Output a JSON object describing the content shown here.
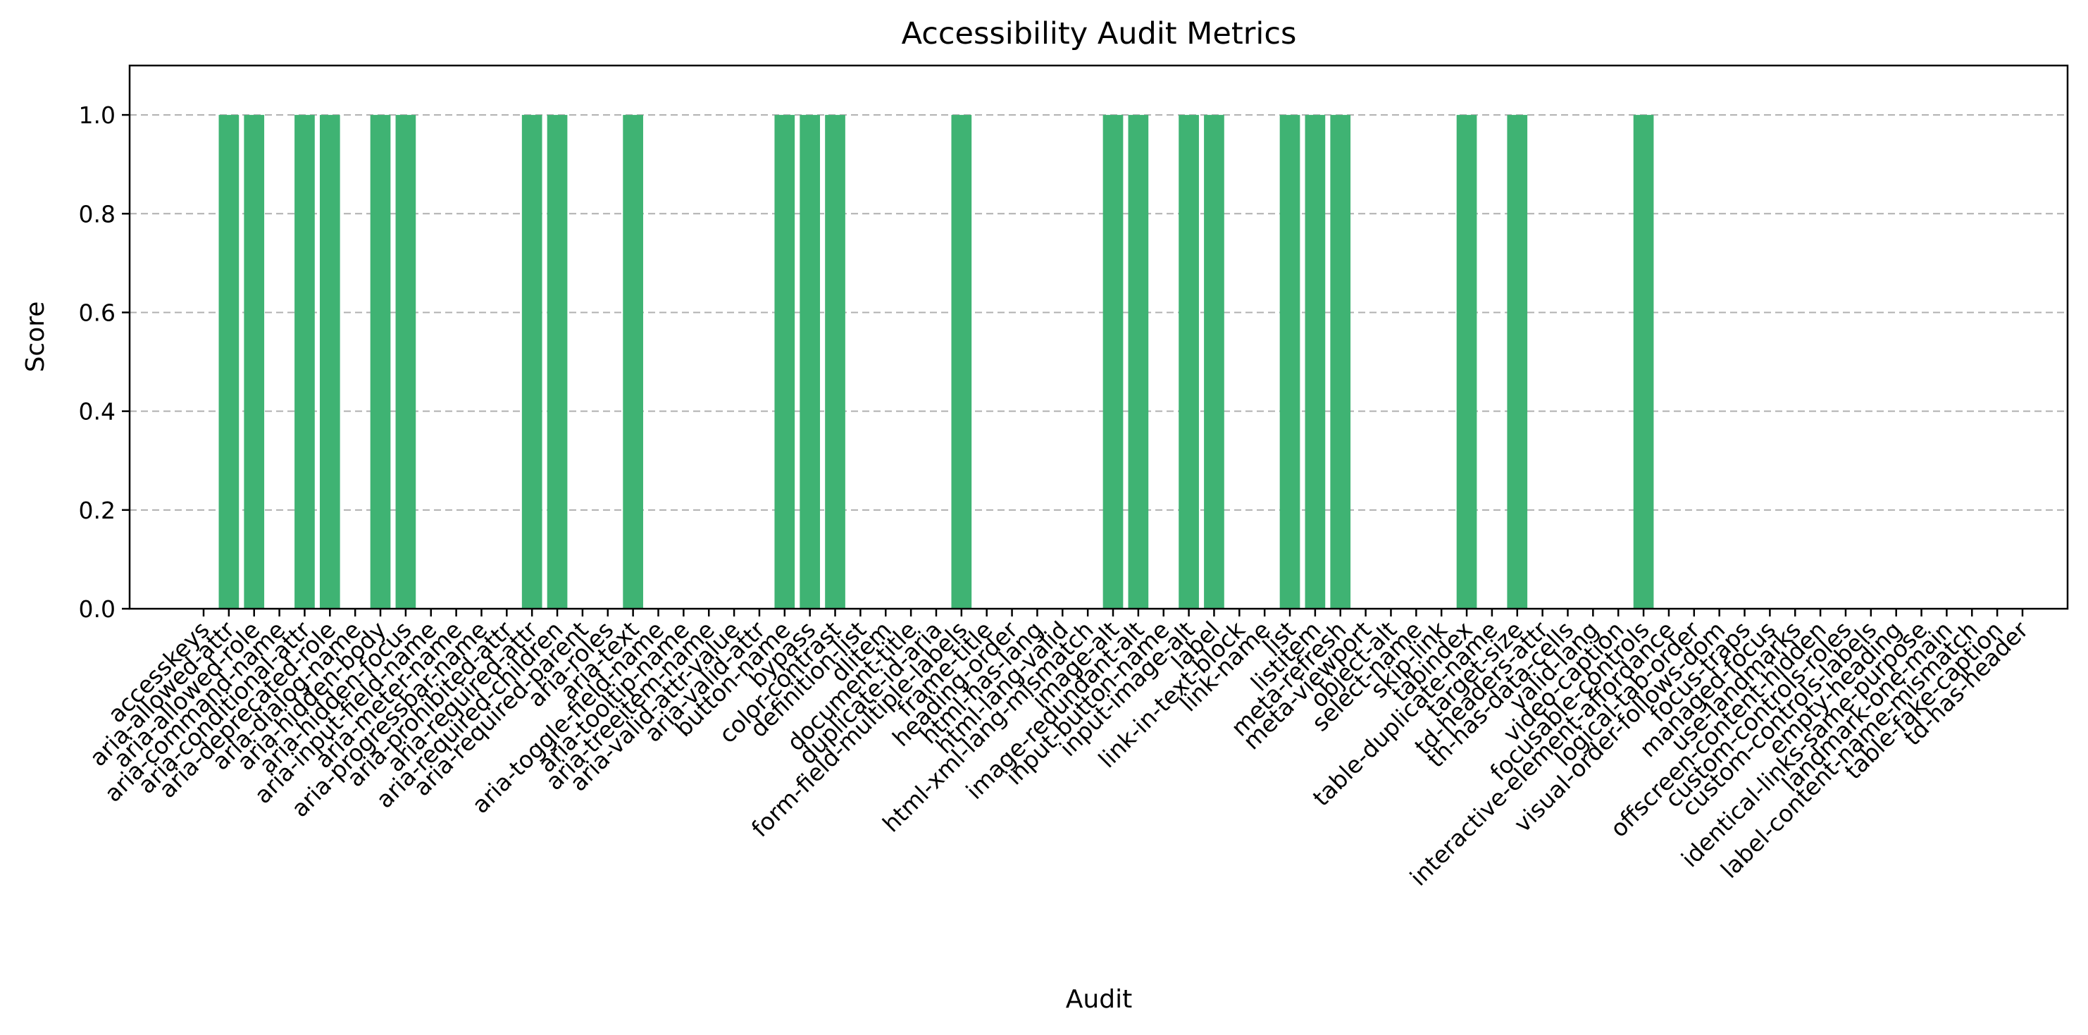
{
  "chart_data": {
    "type": "bar",
    "title": "Accessibility Audit Metrics",
    "xlabel": "Audit",
    "ylabel": "Score",
    "ylim": [
      0,
      1.1
    ],
    "yticks": [
      "0.0",
      "0.2",
      "0.4",
      "0.6",
      "0.8",
      "1.0"
    ],
    "grid": "y-dashed",
    "bar_color": "#3fb373",
    "categories": [
      "accesskeys",
      "aria-allowed-attr",
      "aria-allowed-role",
      "aria-command-name",
      "aria-conditional-attr",
      "aria-deprecated-role",
      "aria-dialog-name",
      "aria-hidden-body",
      "aria-hidden-focus",
      "aria-input-field-name",
      "aria-meter-name",
      "aria-progressbar-name",
      "aria-prohibited-attr",
      "aria-required-attr",
      "aria-required-children",
      "aria-required-parent",
      "aria-roles",
      "aria-text",
      "aria-toggle-field-name",
      "aria-tooltip-name",
      "aria-treeitem-name",
      "aria-valid-attr-value",
      "aria-valid-attr",
      "button-name",
      "bypass",
      "color-contrast",
      "definition-list",
      "dlitem",
      "document-title",
      "duplicate-id-aria",
      "form-field-multiple-labels",
      "frame-title",
      "heading-order",
      "html-has-lang",
      "html-lang-valid",
      "html-xml-lang-mismatch",
      "image-alt",
      "image-redundant-alt",
      "input-button-name",
      "input-image-alt",
      "label",
      "link-in-text-block",
      "link-name",
      "list",
      "listitem",
      "meta-refresh",
      "meta-viewport",
      "object-alt",
      "select-name",
      "skip-link",
      "tabindex",
      "table-duplicate-name",
      "target-size",
      "td-headers-attr",
      "th-has-data-cells",
      "valid-lang",
      "video-caption",
      "focusable-controls",
      "interactive-element-affordance",
      "logical-tab-order",
      "visual-order-follows-dom",
      "focus-traps",
      "managed-focus",
      "use-landmarks",
      "offscreen-content-hidden",
      "custom-controls-roles",
      "custom-controls-labels",
      "empty-heading",
      "identical-links-same-purpose",
      "landmark-one-main",
      "label-content-name-mismatch",
      "table-fake-caption",
      "td-has-header"
    ],
    "values": [
      0,
      1,
      1,
      0,
      1,
      1,
      0,
      1,
      1,
      0,
      0,
      0,
      0,
      1,
      1,
      0,
      0,
      1,
      0,
      0,
      0,
      0,
      0,
      1,
      1,
      1,
      0,
      0,
      0,
      0,
      1,
      0,
      0,
      0,
      0,
      0,
      1,
      1,
      0,
      1,
      1,
      0,
      0,
      1,
      1,
      1,
      0,
      0,
      0,
      0,
      1,
      0,
      1,
      0,
      0,
      0,
      0,
      1,
      0,
      0,
      0,
      0,
      0,
      0,
      0,
      0,
      0,
      0,
      0,
      0,
      0,
      0,
      0
    ]
  }
}
